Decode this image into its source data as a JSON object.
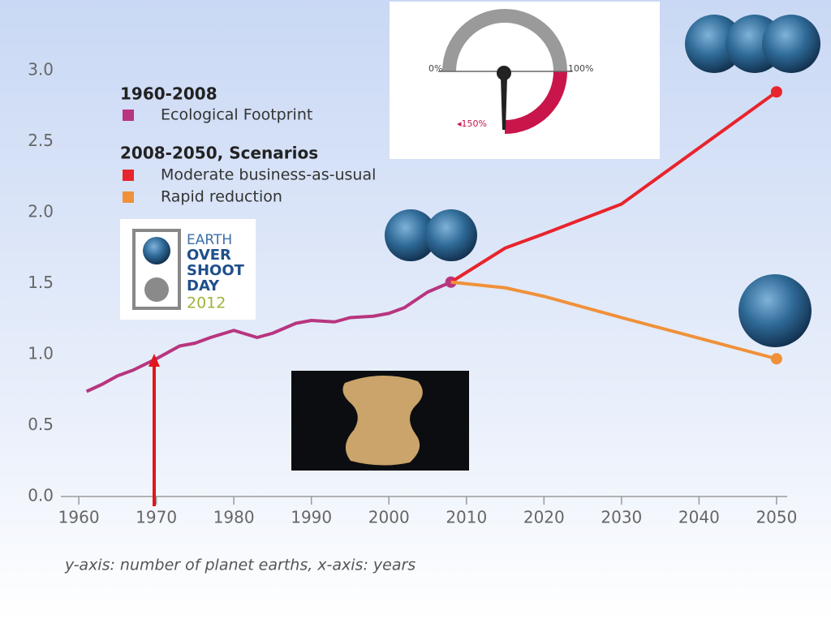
{
  "chart_data": {
    "type": "line",
    "legend_headings": [
      "1960-2008",
      "2008-2050, Scenarios"
    ],
    "caption": "y-axis: number of planet earths, x-axis: years",
    "series": [
      {
        "name": "Ecological Footprint",
        "color": "#b8357f",
        "x": [
          1961,
          1963,
          1965,
          1967,
          1970,
          1973,
          1975,
          1977,
          1980,
          1983,
          1985,
          1988,
          1990,
          1993,
          1995,
          1998,
          2000,
          2002,
          2005,
          2008
        ],
        "values": [
          0.74,
          0.79,
          0.85,
          0.89,
          0.97,
          1.06,
          1.08,
          1.12,
          1.17,
          1.12,
          1.15,
          1.22,
          1.24,
          1.23,
          1.26,
          1.27,
          1.29,
          1.33,
          1.44,
          1.51
        ]
      },
      {
        "name": "Moderate business-as-usual",
        "color": "#e8242c",
        "x": [
          2008,
          2015,
          2020,
          2030,
          2050
        ],
        "values": [
          1.51,
          1.75,
          1.85,
          2.06,
          2.85
        ]
      },
      {
        "name": "Rapid reduction",
        "color": "#f0913a",
        "x": [
          2008,
          2015,
          2020,
          2030,
          2050
        ],
        "values": [
          1.51,
          1.47,
          1.41,
          1.26,
          0.97
        ]
      }
    ],
    "xlim": [
      1958,
      2052
    ],
    "xticks": [
      1960,
      1970,
      1980,
      1990,
      2000,
      2010,
      2020,
      2030,
      2040,
      2050
    ],
    "ylim": [
      0,
      3
    ],
    "yticks": [
      {
        "value": 0,
        "label": "0.0"
      },
      0.5,
      {
        "value": 1,
        "label": "1.0"
      },
      1.5,
      {
        "value": 2,
        "label": "2.0"
      },
      2.5,
      {
        "value": 3,
        "label": "3.0"
      }
    ],
    "annotations": {
      "gauge": [
        "0%",
        "100%",
        "◂150%"
      ],
      "logo": [
        "EARTH",
        "OVER",
        "SHOOT",
        "DAY",
        "2012"
      ]
    }
  }
}
